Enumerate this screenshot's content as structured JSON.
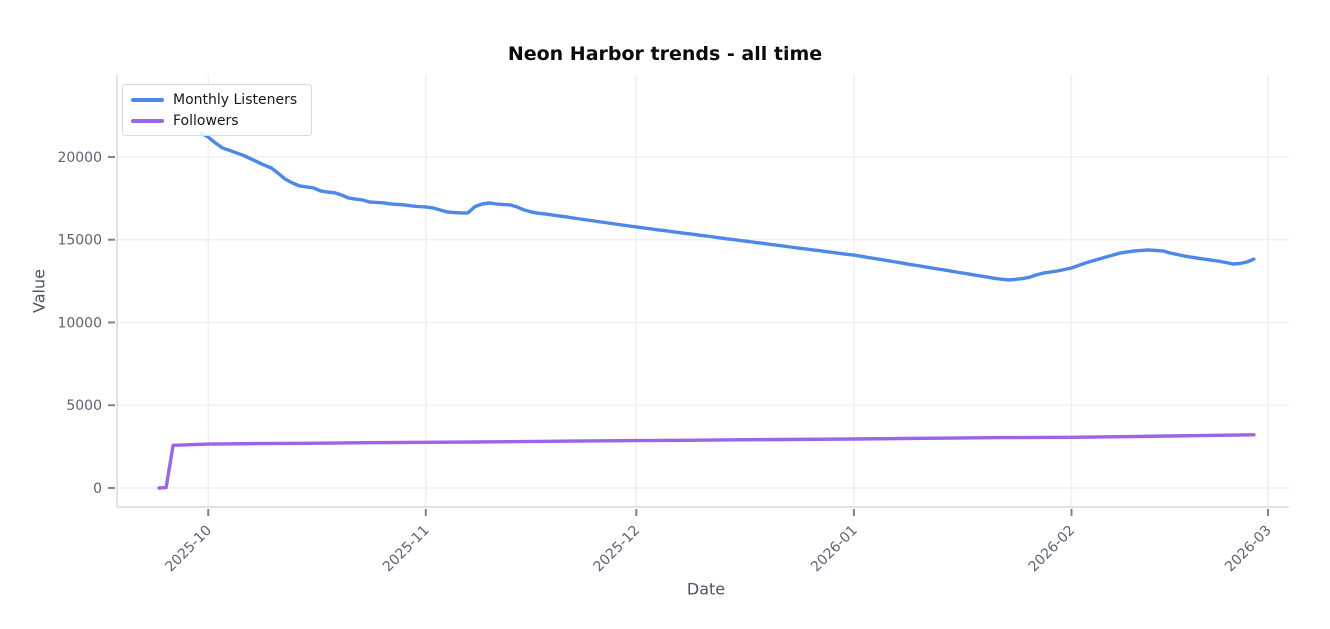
{
  "title": "Neon Harbor trends - all time",
  "colors": {
    "monthly_listeners_line": "#4d87e8",
    "followers_line": "#9b66e6",
    "grid": "#eef0f4",
    "spine": "#dfe2e8",
    "tick_mark": "#7b8194",
    "tick_label": "#5c6372",
    "axis_label": "#4b5363",
    "title": "#0a0a0a",
    "legend_border": "#d7dae1",
    "background": "#ffffff"
  },
  "legend": {
    "position": "upper-left",
    "items": [
      "Monthly Listeners",
      "Followers"
    ]
  },
  "chart_data": {
    "type": "line",
    "title": "Neon Harbor trends - all time",
    "xlabel": "Date",
    "ylabel": "Value",
    "xlim": [
      "2025-09-18",
      "2026-03-04"
    ],
    "ylim": [
      -1150,
      24950
    ],
    "grid": true,
    "legend_position": "upper-left",
    "y_ticks": [
      0,
      5000,
      10000,
      15000,
      20000
    ],
    "x_ticks": [
      {
        "date": "2025-10-01",
        "label": "2025-10"
      },
      {
        "date": "2025-11-01",
        "label": "2025-11"
      },
      {
        "date": "2025-12-01",
        "label": "2025-12"
      },
      {
        "date": "2026-01-01",
        "label": "2026-01"
      },
      {
        "date": "2026-02-01",
        "label": "2026-02"
      },
      {
        "date": "2026-03-01",
        "label": "2026-03"
      }
    ],
    "series": [
      {
        "name": "Monthly Listeners",
        "color": "#4d87e8",
        "cadence": "daily",
        "start_date": "2025-09-30",
        "values": [
          21450,
          21200,
          20850,
          20550,
          20400,
          20250,
          20100,
          19900,
          19700,
          19500,
          19330,
          19000,
          18650,
          18430,
          18250,
          18190,
          18130,
          17950,
          17880,
          17830,
          17700,
          17520,
          17450,
          17400,
          17280,
          17250,
          17220,
          17160,
          17130,
          17100,
          17040,
          17000,
          16980,
          16920,
          16800,
          16680,
          16640,
          16620,
          16620,
          17000,
          17150,
          17220,
          17160,
          17120,
          17100,
          16980,
          16800,
          16680,
          16600,
          16560,
          16500,
          16440,
          16380,
          16310,
          16250,
          16190,
          16130,
          16070,
          16010,
          15950,
          15890,
          15830,
          15770,
          15710,
          15660,
          15600,
          15550,
          15490,
          15440,
          15380,
          15330,
          15270,
          15220,
          15160,
          15110,
          15050,
          15000,
          14940,
          14890,
          14830,
          14780,
          14720,
          14670,
          14610,
          14560,
          14500,
          14450,
          14390,
          14340,
          14280,
          14230,
          14170,
          14120,
          14070,
          14000,
          13930,
          13860,
          13790,
          13720,
          13650,
          13580,
          13510,
          13440,
          13370,
          13300,
          13230,
          13160,
          13090,
          13020,
          12950,
          12880,
          12810,
          12740,
          12670,
          12610,
          12570,
          12600,
          12650,
          12730,
          12870,
          12980,
          13050,
          13110,
          13200,
          13290,
          13440,
          13590,
          13720,
          13840,
          13960,
          14080,
          14200,
          14260,
          14320,
          14350,
          14380,
          14350,
          14320,
          14200,
          14110,
          14020,
          13950,
          13880,
          13820,
          13760,
          13700,
          13620,
          13530,
          13560,
          13650,
          13830
        ]
      },
      {
        "name": "Followers",
        "color": "#9b66e6",
        "points": [
          [
            "2025-09-24",
            0
          ],
          [
            "2025-09-25",
            20
          ],
          [
            "2025-09-26",
            2580
          ],
          [
            "2025-10-01",
            2650
          ],
          [
            "2025-10-08",
            2680
          ],
          [
            "2025-10-15",
            2700
          ],
          [
            "2025-10-22",
            2730
          ],
          [
            "2025-11-01",
            2760
          ],
          [
            "2025-11-08",
            2780
          ],
          [
            "2025-11-15",
            2800
          ],
          [
            "2025-11-22",
            2830
          ],
          [
            "2025-12-01",
            2860
          ],
          [
            "2025-12-08",
            2880
          ],
          [
            "2025-12-15",
            2910
          ],
          [
            "2025-12-22",
            2930
          ],
          [
            "2026-01-01",
            2960
          ],
          [
            "2026-01-08",
            2990
          ],
          [
            "2026-01-15",
            3010
          ],
          [
            "2026-01-22",
            3040
          ],
          [
            "2026-02-01",
            3060
          ],
          [
            "2026-02-08",
            3100
          ],
          [
            "2026-02-15",
            3140
          ],
          [
            "2026-02-22",
            3180
          ],
          [
            "2026-02-27",
            3210
          ]
        ]
      }
    ]
  }
}
